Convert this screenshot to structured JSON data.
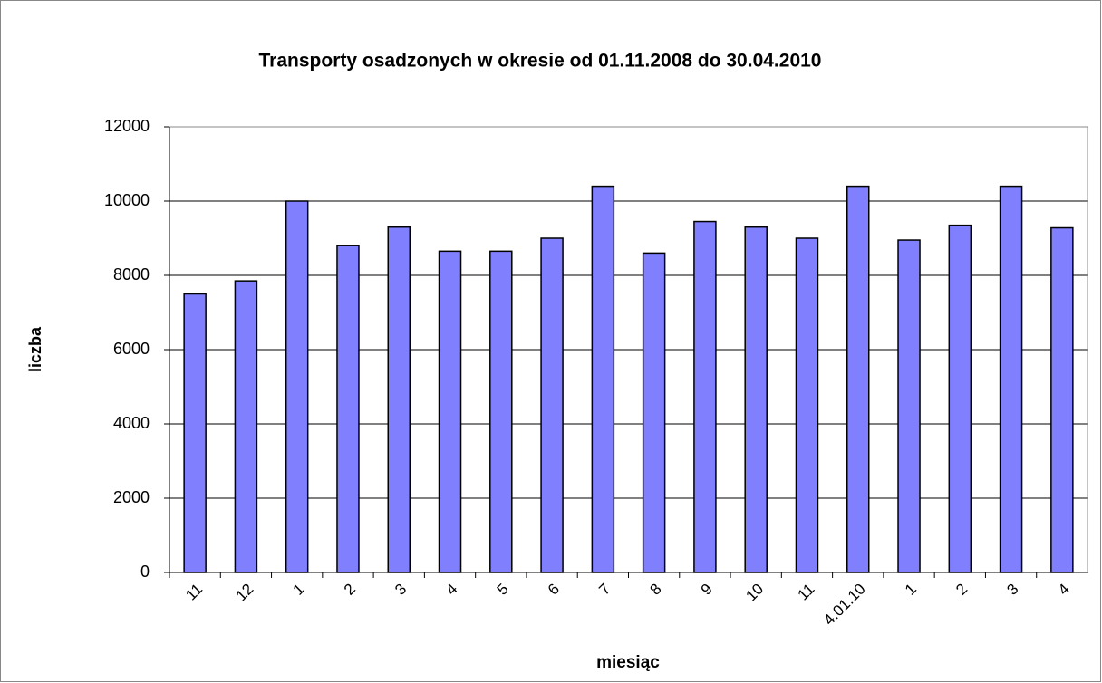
{
  "chart_data": {
    "type": "bar",
    "title": "Transporty osadzonych w okresie od 01.11.2008 do 30.04.2010",
    "x_label": "miesiąc",
    "y_label": "liczba",
    "categories": [
      "11",
      "12",
      "1",
      "2",
      "3",
      "4",
      "5",
      "6",
      "7",
      "8",
      "9",
      "10",
      "11",
      "4.01.10",
      "1",
      "2",
      "3",
      "4"
    ],
    "values": [
      7500,
      7850,
      10000,
      8800,
      9300,
      8650,
      8650,
      9000,
      10400,
      8600,
      9450,
      9300,
      9000,
      10400,
      8950,
      9350,
      10400,
      9280
    ],
    "color": "#8080ff",
    "ylim": [
      0,
      12000
    ],
    "yticks": [
      0,
      2000,
      4000,
      6000,
      8000,
      10000,
      12000
    ],
    "grid": true
  }
}
